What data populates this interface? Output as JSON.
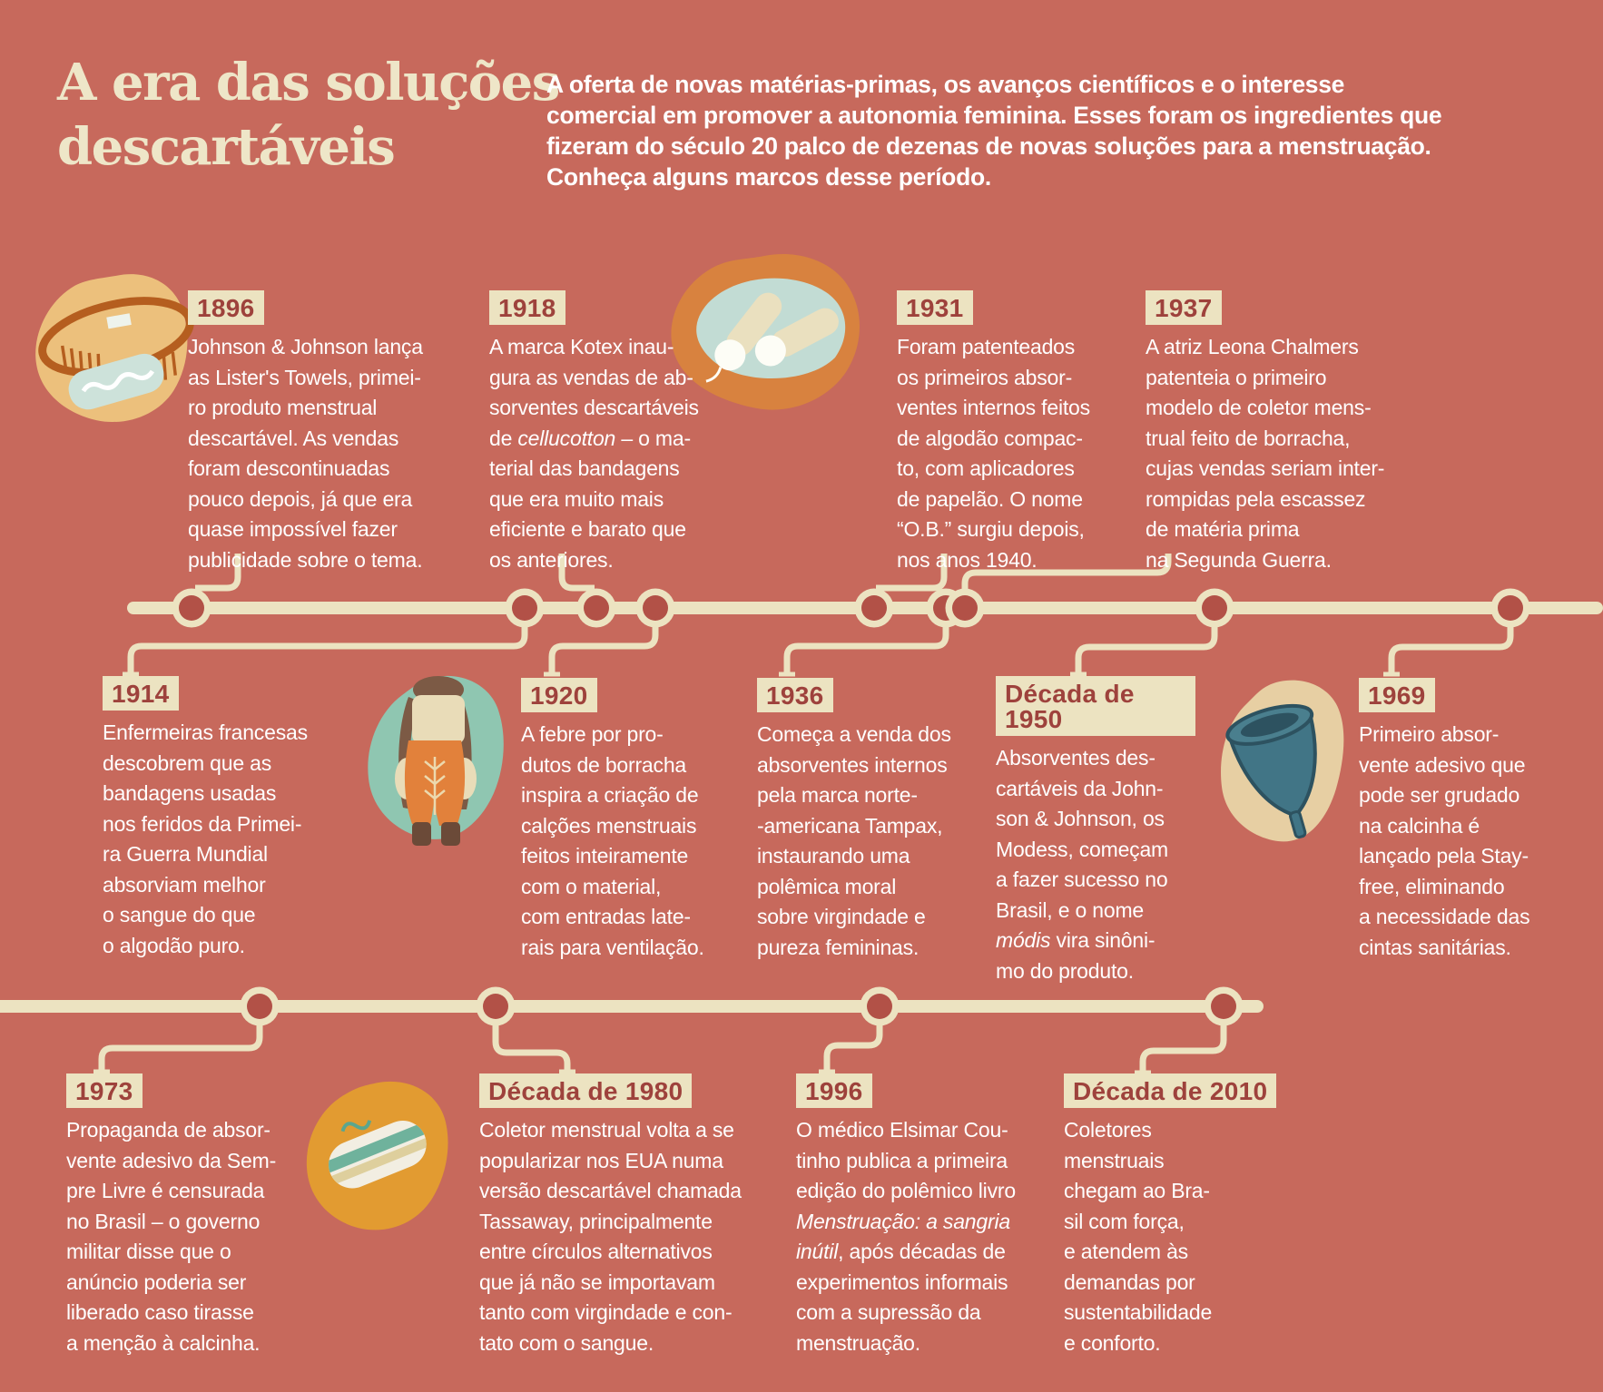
{
  "header": {
    "title_lines": [
      "A era das soluções",
      "descartáveis"
    ],
    "intro_lines": [
      "A oferta de novas matérias-primas, os avanços científicos e o interesse",
      "comercial em promover a autonomia feminina. Esses foram os ingredientes que",
      "fizeram do século 20 palco de dezenas de novas soluções para a menstruação.",
      "Conheça alguns marcos desse período."
    ]
  },
  "events": [
    {
      "year": "1896",
      "lines": [
        "Johnson & Johnson lança",
        "as Lister's Towels, primei-",
        "ro produto menstrual",
        "descartável. As vendas",
        "foram descontinuadas",
        "pouco depois, já que era",
        "quase impossível fazer",
        "publicidade sobre o tema."
      ]
    },
    {
      "year": "1918",
      "lines": [
        "A marca Kotex inau-",
        "gura as vendas de ab-",
        "sorventes descartáveis",
        "de *cellucotton* – o ma-",
        "terial das bandagens",
        "que era muito mais",
        "eficiente e barato que",
        "os anteriores."
      ]
    },
    {
      "year": "1931",
      "lines": [
        "Foram patenteados",
        "os primeiros absor-",
        "ventes internos feitos",
        "de algodão compac-",
        "to, com aplicadores",
        "de papelão. O nome",
        "“O.B.” surgiu depois,",
        "nos anos 1940."
      ]
    },
    {
      "year": "1937",
      "lines": [
        "A atriz Leona Chalmers",
        "patenteia o primeiro",
        "modelo de coletor mens-",
        "trual feito de borracha,",
        "cujas vendas seriam inter-",
        "rompidas pela escassez",
        "de matéria prima",
        "na Segunda Guerra."
      ]
    },
    {
      "year": "1914",
      "lines": [
        "Enfermeiras francesas",
        "descobrem que as",
        "bandagens usadas",
        "nos feridos da Primei-",
        "ra Guerra Mundial",
        "absorviam melhor",
        "o sangue do que",
        "o algodão puro."
      ]
    },
    {
      "year": "1920",
      "lines": [
        "A febre por pro-",
        "dutos de borracha",
        "inspira a criação de",
        "calções menstruais",
        "feitos inteiramente",
        "com o material,",
        "com entradas late-",
        "rais para ventilação."
      ]
    },
    {
      "year": "1936",
      "lines": [
        "Começa a venda dos",
        "absorventes internos",
        "pela marca norte-",
        "-americana Tampax,",
        "instaurando uma",
        "polêmica moral",
        "sobre virgindade e",
        "pureza femininas."
      ]
    },
    {
      "year": "Década de 1950",
      "lines": [
        "Absorventes des-",
        "cartáveis da John-",
        "son & Johnson, os",
        "Modess, começam",
        "a fazer sucesso no",
        "Brasil, e o nome",
        "*módis* vira sinôni-",
        "mo do produto."
      ]
    },
    {
      "year": "1969",
      "lines": [
        "Primeiro absor-",
        "vente adesivo que",
        "pode ser grudado",
        "na calcinha é",
        "lançado pela Stay-",
        "free, eliminando",
        "a necessidade das",
        "cintas sanitárias."
      ]
    },
    {
      "year": "1973",
      "lines": [
        "Propaganda de absor-",
        "vente adesivo da Sem-",
        "pre Livre é censurada",
        "no Brasil – o governo",
        "militar disse que o",
        "anúncio poderia ser",
        "liberado caso tirasse",
        "a menção à calcinha."
      ]
    },
    {
      "year": "Década de 1980",
      "lines": [
        "Coletor menstrual volta a se",
        "popularizar nos EUA numa",
        "versão descartável chamada",
        "Tassaway, principalmente",
        "entre círculos alternativos",
        "que já não se importavam",
        "tanto com virgindade e con-",
        "tato com o sangue."
      ]
    },
    {
      "year": "1996",
      "lines": [
        "O médico Elsimar Cou-",
        "tinho publica a primeira",
        "edição do polêmico livro",
        "*Menstruação: a sangria*",
        "*inútil*, após décadas de",
        "experimentos informais",
        "com a supressão da",
        "menstruação."
      ]
    },
    {
      "year": "Década de 2010",
      "lines": [
        "Coletores",
        "menstruais",
        "chegam ao Bra-",
        "sil com força,",
        "e atendem às",
        "demandas por",
        "sustentabilidade",
        "e conforto."
      ]
    }
  ],
  "illustrations": {
    "belt": "sanitary-belt-with-pad",
    "tampons": "early-cotton-tampons",
    "bloomers": "rubber-menstrual-bloomers",
    "cup": "rubber-menstrual-cup",
    "pad": "adhesive-disposable-pad"
  },
  "colors": {
    "background": "#c7695c",
    "cream": "#ece3c1",
    "badge_text": "#9e423c",
    "timeline_dot": "#b25147",
    "body_text": "#ffffff"
  }
}
